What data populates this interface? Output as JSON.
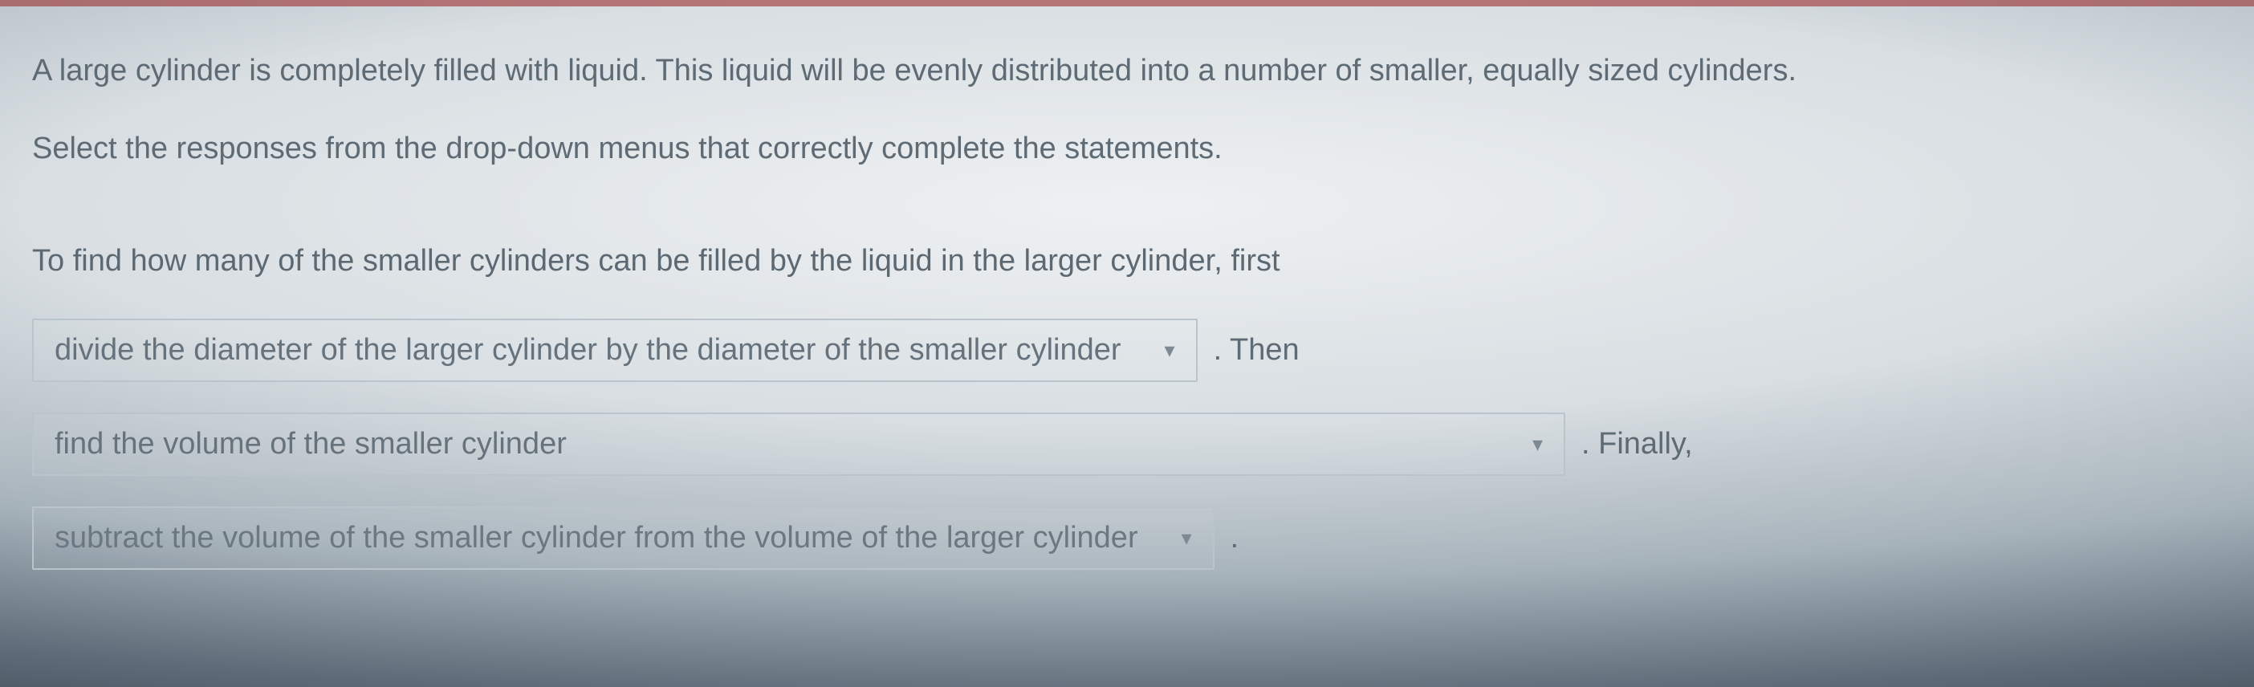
{
  "question": {
    "line1": "A large cylinder is completely filled with liquid. This liquid will be evenly distributed into a number of smaller, equally sized cylinders.",
    "line2": "Select the responses from the drop-down menus that correctly complete the statements."
  },
  "prompt": {
    "lead": "To find how many of the smaller cylinders can be filled by the liquid in the larger cylinder, first",
    "dropdown1": {
      "selected": "divide the diameter of the larger cylinder by the diameter of the smaller cylinder"
    },
    "connector1": ". Then",
    "dropdown2": {
      "selected": "find the volume of the smaller cylinder"
    },
    "connector2": ". Finally,",
    "dropdown3": {
      "selected": "subtract the volume of the smaller cylinder from the volume of the larger cylinder"
    },
    "connector3": "."
  },
  "colors": {
    "text": "#5f6b74",
    "border": "#b9c4cc",
    "accent_bar": "#9b2f2f"
  }
}
